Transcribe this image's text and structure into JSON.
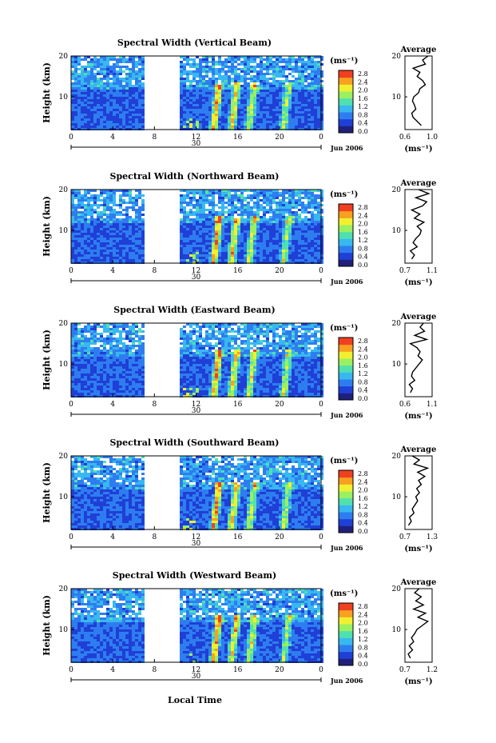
{
  "figure": {
    "xlabel_bottom": "Local Time",
    "date_label": "Jun 2006",
    "day_label": "30",
    "ylabel": "Height (km)",
    "colorbar_unit": "(ms⁻¹)",
    "colorbar_ticks": [
      "2.8",
      "2.4",
      "2.0",
      "1.6",
      "1.2",
      "0.8",
      "0.4",
      "0.0"
    ],
    "colors": {
      "scale": [
        "#20207a",
        "#1f3fd6",
        "#2e7df0",
        "#38b8f0",
        "#50e0b0",
        "#9af060",
        "#f0f030",
        "#f8a020",
        "#f04020"
      ],
      "axis": "#000000",
      "background": "#ffffff"
    }
  },
  "chart_data": [
    {
      "type": "heatmap",
      "title": "Spectral Width (Vertical Beam)",
      "xlabel": "Local Time",
      "ylabel": "Height (km)",
      "xlim": [
        0,
        24
      ],
      "ylim": [
        2,
        20
      ],
      "xticks": [
        "0",
        "4",
        "8",
        "12",
        "16",
        "20",
        "0"
      ],
      "yticks": [
        "10",
        "20"
      ],
      "data_gap": [
        6.8,
        10.3
      ],
      "colorbar": {
        "unit": "(ms⁻¹)",
        "ticks": [
          "2.8",
          "2.4",
          "2.0",
          "1.6",
          "1.2",
          "0.8",
          "0.4",
          "0.0"
        ],
        "range": [
          0,
          2.8
        ]
      },
      "average": {
        "title": "Average",
        "xlabel": "(ms⁻¹)",
        "xlim": [
          0.6,
          1.0
        ],
        "xticks": [
          "0.6",
          "1.0"
        ],
        "yticks": [
          "10",
          "20"
        ],
        "height": [
          3,
          4,
          5,
          6,
          7,
          8,
          9,
          10,
          11,
          12,
          13,
          14,
          15,
          16,
          17,
          18,
          19,
          20
        ],
        "values": [
          0.84,
          0.78,
          0.72,
          0.7,
          0.76,
          0.74,
          0.71,
          0.73,
          0.8,
          0.82,
          0.9,
          0.86,
          0.78,
          0.82,
          0.72,
          0.9,
          0.86,
          0.94
        ]
      }
    },
    {
      "type": "heatmap",
      "title": "Spectral Width (Northward Beam)",
      "xlabel": "Local Time",
      "ylabel": "Height (km)",
      "xlim": [
        0,
        24
      ],
      "ylim": [
        2,
        20
      ],
      "xticks": [
        "0",
        "4",
        "8",
        "12",
        "16",
        "20",
        "0"
      ],
      "yticks": [
        "10",
        "20"
      ],
      "data_gap": [
        6.8,
        10.3
      ],
      "colorbar": {
        "unit": "(ms⁻¹)",
        "ticks": [
          "2.8",
          "2.4",
          "2.0",
          "1.6",
          "1.2",
          "0.8",
          "0.4",
          "0.0"
        ],
        "range": [
          0,
          2.8
        ]
      },
      "average": {
        "title": "Average",
        "xlabel": "(ms⁻¹)",
        "xlim": [
          0.7,
          1.1
        ],
        "xticks": [
          "0.7",
          "1.1"
        ],
        "yticks": [
          "10",
          "20"
        ],
        "height": [
          3,
          4,
          5,
          6,
          7,
          8,
          9,
          10,
          11,
          12,
          13,
          14,
          15,
          16,
          17,
          18,
          19,
          20
        ],
        "values": [
          0.8,
          0.84,
          0.78,
          0.88,
          0.82,
          0.86,
          0.92,
          0.94,
          0.88,
          0.98,
          0.84,
          0.92,
          0.8,
          0.96,
          1.02,
          0.86,
          1.05,
          0.9
        ]
      }
    },
    {
      "type": "heatmap",
      "title": "Spectral Width (Eastward Beam)",
      "xlabel": "Local Time",
      "ylabel": "Height (km)",
      "xlim": [
        0,
        24
      ],
      "ylim": [
        2,
        20
      ],
      "xticks": [
        "0",
        "4",
        "8",
        "12",
        "16",
        "20",
        "0"
      ],
      "yticks": [
        "10",
        "20"
      ],
      "data_gap": [
        6.8,
        10.3
      ],
      "colorbar": {
        "unit": "(ms⁻¹)",
        "ticks": [
          "2.8",
          "2.4",
          "2.0",
          "1.6",
          "1.2",
          "0.8",
          "0.4",
          "0.0"
        ],
        "range": [
          0,
          2.8
        ]
      },
      "average": {
        "title": "Average",
        "xlabel": "(ms⁻¹)",
        "xlim": [
          0.6,
          1.1
        ],
        "xticks": [
          "0.6",
          "1.1"
        ],
        "yticks": [
          "10",
          "20"
        ],
        "height": [
          3,
          4,
          5,
          6,
          7,
          8,
          9,
          10,
          11,
          12,
          13,
          14,
          15,
          16,
          17,
          18,
          19,
          20
        ],
        "values": [
          0.7,
          0.74,
          0.68,
          0.78,
          0.72,
          0.74,
          0.8,
          0.86,
          0.92,
          0.84,
          0.88,
          0.82,
          0.7,
          1.0,
          0.78,
          0.96,
          0.88,
          0.94
        ]
      }
    },
    {
      "type": "heatmap",
      "title": "Spectral Width (Southward Beam)",
      "xlabel": "Local Time",
      "ylabel": "Height (km)",
      "xlim": [
        0,
        24
      ],
      "ylim": [
        2,
        20
      ],
      "xticks": [
        "0",
        "4",
        "8",
        "12",
        "16",
        "20",
        "0"
      ],
      "yticks": [
        "10",
        "20"
      ],
      "data_gap": [
        6.8,
        10.3
      ],
      "colorbar": {
        "unit": "(ms⁻¹)",
        "ticks": [
          "2.8",
          "2.4",
          "2.0",
          "1.6",
          "1.2",
          "0.8",
          "0.4",
          "0.0"
        ],
        "range": [
          0,
          2.8
        ]
      },
      "average": {
        "title": "Average",
        "xlabel": "(ms⁻¹)",
        "xlim": [
          0.7,
          1.3
        ],
        "xticks": [
          "0.7",
          "1.3"
        ],
        "yticks": [
          "10",
          "20"
        ],
        "height": [
          3,
          4,
          5,
          6,
          7,
          8,
          9,
          10,
          11,
          12,
          13,
          14,
          15,
          16,
          17,
          18,
          19,
          20
        ],
        "values": [
          0.78,
          0.84,
          0.8,
          0.9,
          0.86,
          0.92,
          0.98,
          0.94,
          1.02,
          0.96,
          1.06,
          1.0,
          1.14,
          0.98,
          1.2,
          0.9,
          1.02,
          0.86
        ]
      }
    },
    {
      "type": "heatmap",
      "title": "Spectral Width (Westward Beam)",
      "xlabel": "Local Time",
      "ylabel": "Height (km)",
      "xlim": [
        0,
        24
      ],
      "ylim": [
        2,
        20
      ],
      "xticks": [
        "0",
        "4",
        "8",
        "12",
        "16",
        "20",
        "0"
      ],
      "yticks": [
        "10",
        "20"
      ],
      "data_gap": [
        6.8,
        10.3
      ],
      "colorbar": {
        "unit": "(ms⁻¹)",
        "ticks": [
          "2.8",
          "2.4",
          "2.0",
          "1.6",
          "1.2",
          "0.8",
          "0.4",
          "0.0"
        ],
        "range": [
          0,
          2.8
        ]
      },
      "average": {
        "title": "Average",
        "xlabel": "(ms⁻¹)",
        "xlim": [
          0.7,
          1.2
        ],
        "xticks": [
          "0.7",
          "1.2"
        ],
        "yticks": [
          "10",
          "20"
        ],
        "height": [
          3,
          4,
          5,
          6,
          7,
          8,
          9,
          10,
          11,
          12,
          13,
          14,
          15,
          16,
          17,
          18,
          19,
          20
        ],
        "values": [
          0.8,
          0.76,
          0.84,
          0.78,
          0.86,
          0.82,
          0.88,
          0.92,
          1.02,
          1.12,
          0.94,
          1.08,
          0.86,
          1.04,
          0.9,
          1.0,
          0.88,
          0.96
        ]
      }
    }
  ]
}
